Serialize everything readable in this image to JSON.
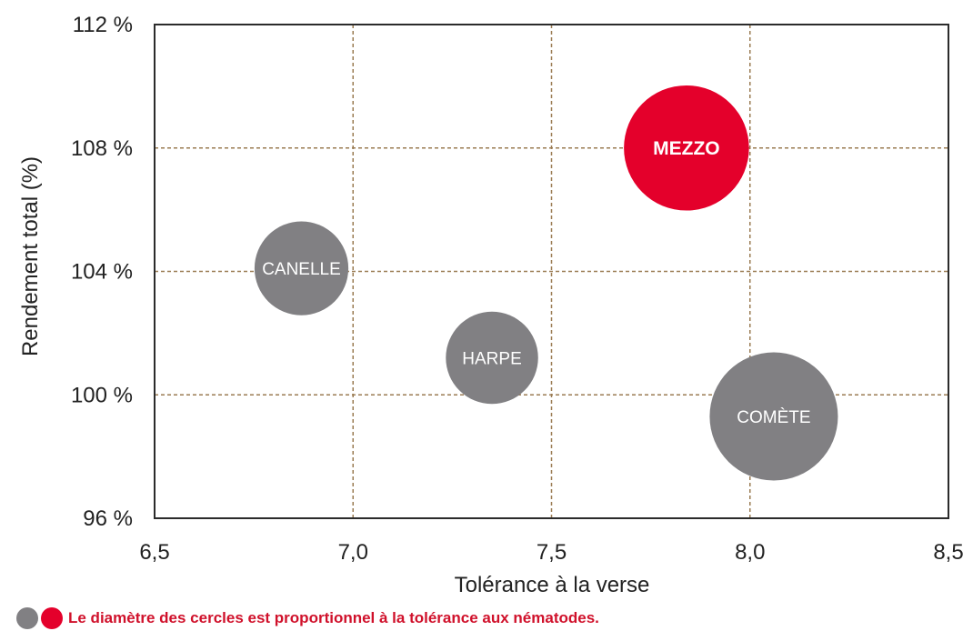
{
  "chart_data": {
    "type": "scatter",
    "xlabel": "Tolérance à la verse",
    "ylabel": "Rendement total (%)",
    "xlim": [
      6.5,
      8.5
    ],
    "ylim": [
      96,
      112
    ],
    "x_ticks": [
      "6,5",
      "7,0",
      "7,5",
      "8,0",
      "8,5"
    ],
    "y_ticks": [
      "96 %",
      "100 %",
      "104 %",
      "108 %",
      "112 %"
    ],
    "grid": true,
    "points": [
      {
        "label": "MEZZO",
        "x": 7.84,
        "y": 108.0,
        "size": 8.0,
        "color": "#e4002b"
      },
      {
        "label": "CANELLE",
        "x": 6.87,
        "y": 104.1,
        "size": 6.0,
        "color": "#818083"
      },
      {
        "label": "HARPE",
        "x": 7.35,
        "y": 101.2,
        "size": 5.9,
        "color": "#818083"
      },
      {
        "label": "COMÈTE",
        "x": 8.06,
        "y": 99.3,
        "size": 8.2,
        "color": "#818083"
      }
    ],
    "legend_colors": [
      "#818083",
      "#e4002b"
    ],
    "note": "Le diamètre des cercles est proportionnel à la tolérance aux nématodes."
  }
}
